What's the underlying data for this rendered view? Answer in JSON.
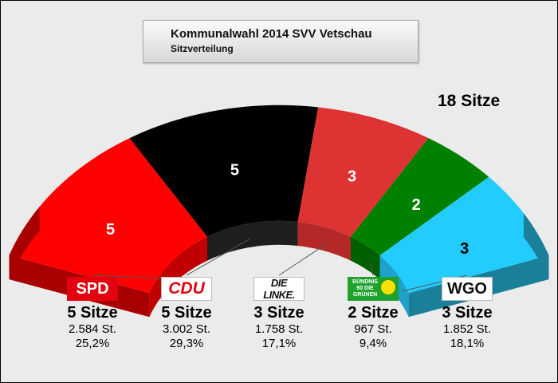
{
  "title": "Kommunalwahl 2014 SVV Vetschau",
  "subtitle": "Sitzverteilung",
  "total_seats_label": "18 Sitze",
  "chart_data": {
    "type": "pie",
    "variant": "half-ring seat distribution",
    "total_seats": 18,
    "categories": [
      "SPD",
      "CDU",
      "DIE LINKE.",
      "BÜNDNIS 90 DIE GRÜNEN",
      "WGO"
    ],
    "values": [
      5,
      5,
      3,
      2,
      3
    ]
  },
  "parties": [
    {
      "logo": "SPD",
      "seats": 5,
      "seats_label": "5 Sitze",
      "votes": "2.584 St.",
      "percent": "25,2%",
      "color": "#ff0000",
      "side_color": "#a80000",
      "inner_color": "#c00000"
    },
    {
      "logo": "CDU",
      "seats": 5,
      "seats_label": "5 Sitze",
      "votes": "3.002 St.",
      "percent": "29,3%",
      "color": "#000000",
      "side_color": "#000000",
      "inner_color": "#1e1e1e"
    },
    {
      "logo": "DIE LINKE.",
      "seats": 3,
      "seats_label": "3 Sitze",
      "votes": "1.758 St.",
      "percent": "17,1%",
      "color": "#dd3333",
      "side_color": "#9e2222",
      "inner_color": "#b42828"
    },
    {
      "logo": "BÜNDNIS 90 DIE GRÜNEN",
      "seats": 2,
      "seats_label": "2 Sitze",
      "votes": "967 St.",
      "percent": "9,4%",
      "color": "#008000",
      "side_color": "#005000",
      "inner_color": "#006000"
    },
    {
      "logo": "WGO",
      "seats": 3,
      "seats_label": "3 Sitze",
      "votes": "1.852 St.",
      "percent": "18,1%",
      "color": "#22ccff",
      "side_color": "#1a7f99",
      "inner_color": "#1ea2cc"
    }
  ]
}
